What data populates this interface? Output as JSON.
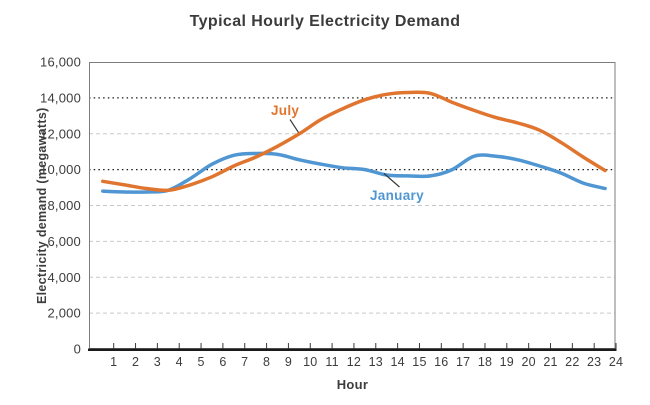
{
  "chart_data": {
    "type": "line",
    "title": "Typical Hourly Electricity Demand",
    "xlabel": "Hour",
    "ylabel": "Electricity demand (megawatts)",
    "x": [
      1,
      2,
      3,
      4,
      5,
      6,
      7,
      8,
      9,
      10,
      11,
      12,
      13,
      14,
      15,
      16,
      17,
      18,
      19,
      20,
      21,
      22,
      23,
      24
    ],
    "ylim": [
      0,
      16000
    ],
    "yticks": [
      0,
      2000,
      4000,
      6000,
      8000,
      10000,
      12000,
      14000,
      16000
    ],
    "ytick_labels": [
      "0",
      "2,000",
      "4,000",
      "6,000",
      "8,000",
      "10,000",
      "12,000",
      "14,000",
      "16,000"
    ],
    "grid": {
      "light_lines": [
        2000,
        4000,
        6000,
        8000,
        12000
      ],
      "dark_lines": [
        10000,
        14000
      ]
    },
    "legend_position": "inline-labels",
    "series": [
      {
        "name": "July",
        "color": "#e0752f",
        "values": [
          9350,
          9150,
          8950,
          8850,
          9150,
          9600,
          10200,
          10700,
          11300,
          12000,
          12800,
          13400,
          13900,
          14200,
          14300,
          14250,
          13750,
          13300,
          12900,
          12600,
          12200,
          11500,
          10700,
          9950
        ]
      },
      {
        "name": "January",
        "color": "#4f96d3",
        "values": [
          8800,
          8750,
          8750,
          8850,
          9500,
          10300,
          10800,
          10900,
          10850,
          10550,
          10300,
          10100,
          10000,
          9700,
          9650,
          9650,
          10000,
          10750,
          10750,
          10550,
          10200,
          9800,
          9250,
          8950
        ]
      }
    ]
  },
  "colors": {
    "title_text": "#3b3b3b",
    "axis_text": "#3d3d3d",
    "light_grid": "#c9c9c9",
    "dark_grid": "#1a1a1a",
    "border": "#7d7d7d",
    "bottom_axis": "#1a1a1a",
    "tick": "#3a3a3a",
    "leader": "#3a3a3a"
  }
}
